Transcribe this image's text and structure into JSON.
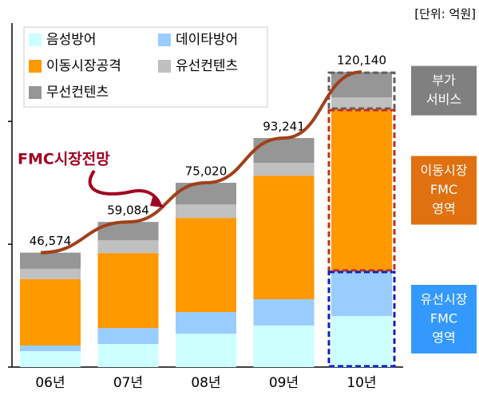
{
  "chart_data": {
    "type": "bar",
    "stacked": true,
    "unit": "[단위: 억원]",
    "annotation": "FMC시장전망",
    "categories": [
      "06년",
      "07년",
      "08년",
      "09년",
      "10년"
    ],
    "series": [
      {
        "name": "음성방어",
        "color": "#ccffff",
        "values": [
          6500,
          9400,
          13600,
          16900,
          20800
        ]
      },
      {
        "name": "데이타방어",
        "color": "#99ccff",
        "values": [
          2300,
          6500,
          8800,
          10700,
          18200
        ]
      },
      {
        "name": "이동시장공격",
        "color": "#ff9900",
        "values": [
          27000,
          30500,
          38300,
          50300,
          65900
        ]
      },
      {
        "name": "유선컨텐츠",
        "color": "#c0c0c0",
        "values": [
          4200,
          5200,
          5500,
          5200,
          4900
        ]
      },
      {
        "name": "무선컨텐츠",
        "color": "#969696",
        "values": [
          6574,
          7484,
          8820,
          10141,
          10340
        ]
      }
    ],
    "totals": [
      46574,
      59084,
      75020,
      93241,
      120140
    ],
    "total_labels": [
      "46,574",
      "59,084",
      "75,020",
      "93,241",
      "120,140"
    ],
    "trend_color": "#a0401a",
    "ylim": [
      0,
      140000
    ],
    "yticks": [
      0,
      50000,
      100000
    ],
    "boxes": [
      {
        "lines": [
          "부가",
          "서비스"
        ],
        "color": "#808080",
        "border": "#606060"
      },
      {
        "lines": [
          "이동시장",
          "FMC",
          "영역"
        ],
        "color": "#e07010",
        "border": "#c03020"
      },
      {
        "lines": [
          "유선시장",
          "FMC",
          "영역"
        ],
        "color": "#3399ff",
        "border": "#1020c0"
      }
    ]
  }
}
